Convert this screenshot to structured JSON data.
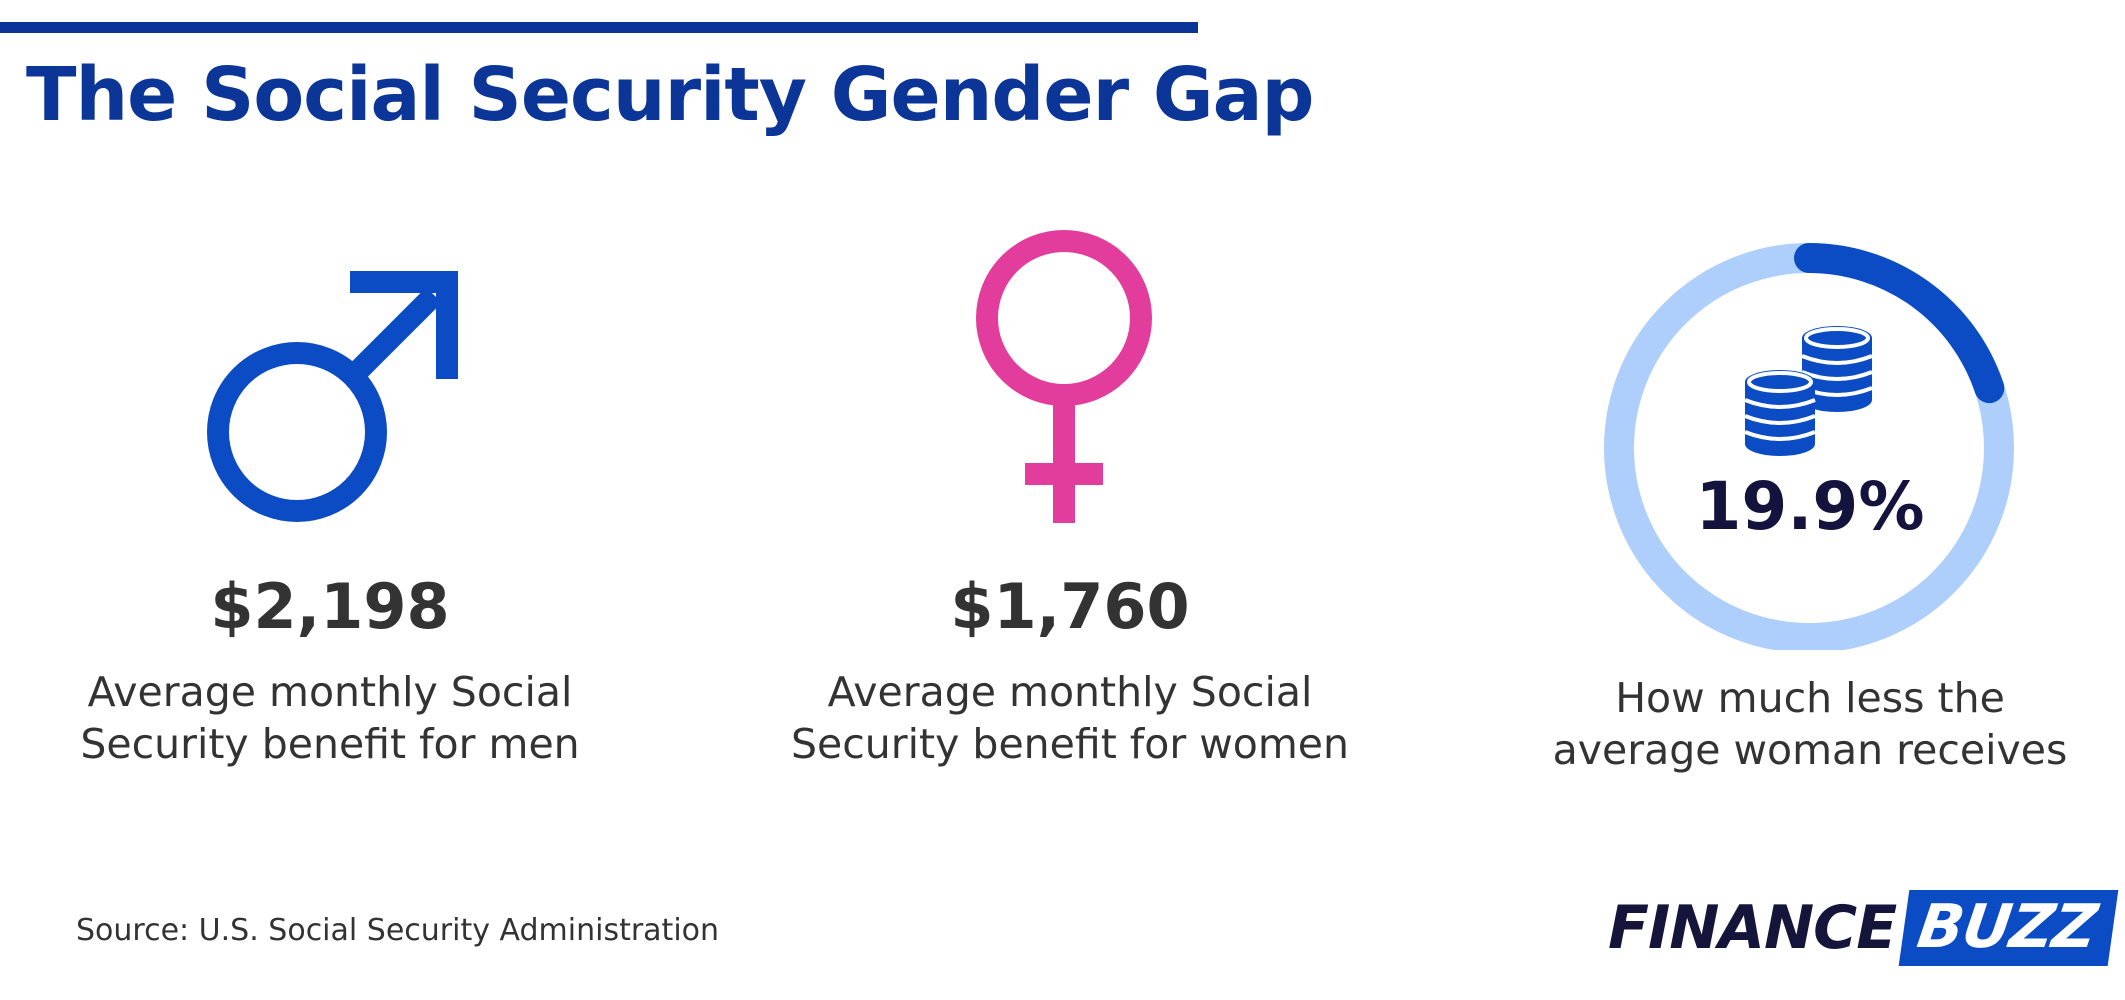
{
  "header": {
    "title": "The Social Security Gender Gap"
  },
  "stats": {
    "men": {
      "icon": "male-symbol-icon",
      "amount": "$2,198",
      "caption_line1": "Average monthly Social",
      "caption_line2": "Security benefit for men",
      "color": "#0B4CC4"
    },
    "women": {
      "icon": "female-symbol-icon",
      "amount": "$1,760",
      "caption_line1": "Average monthly Social",
      "caption_line2": "Security benefit for women",
      "color": "#E23D9D"
    },
    "gap": {
      "icon": "coin-stacks-icon",
      "percent_label": "19.9%",
      "ring_fraction": 0.199,
      "caption_line1": "How much less the",
      "caption_line2": "average woman receives",
      "ring_track_color": "#AECFFC",
      "ring_fill_color": "#0B4CC4"
    }
  },
  "footer": {
    "source": "Source: U.S. Social Security Administration",
    "logo_part1": "FINANCE",
    "logo_part2": "BUZZ"
  }
}
